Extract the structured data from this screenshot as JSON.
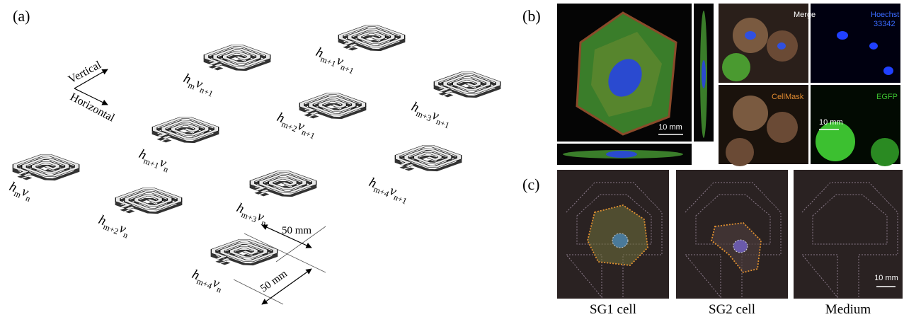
{
  "panel_a": {
    "label": "(a)",
    "axes": {
      "vertical": "Vertical",
      "horizontal": "Horizontal"
    },
    "resonators": [
      {
        "h": "h",
        "h_sub": "m",
        "v": "ν",
        "v_sub": "n"
      },
      {
        "h": "h",
        "h_sub": "m+2",
        "v": "ν",
        "v_sub": "n"
      },
      {
        "h": "h",
        "h_sub": "m+1",
        "v": "ν",
        "v_sub": "n"
      },
      {
        "h": "h",
        "h_sub": "m",
        "v": "ν",
        "v_sub": "n+1"
      },
      {
        "h": "h",
        "h_sub": "m+3",
        "v": "ν",
        "v_sub": "n"
      },
      {
        "h": "h",
        "h_sub": "m+4",
        "v": "ν",
        "v_sub": "n"
      },
      {
        "h": "h",
        "h_sub": "m+2",
        "v": "ν",
        "v_sub": "n+1"
      },
      {
        "h": "h",
        "h_sub": "m+1",
        "v": "ν",
        "v_sub": "n+1"
      },
      {
        "h": "h",
        "h_sub": "m+4",
        "v": "ν",
        "v_sub": "n+1"
      },
      {
        "h": "h",
        "h_sub": "m+3",
        "v": "ν",
        "v_sub": "n+1"
      }
    ],
    "dimensions": [
      "50 mm",
      "50 mm"
    ]
  },
  "panel_b": {
    "label": "(b)",
    "merge": "Merge",
    "hoechst": [
      "Hoechst",
      "33342"
    ],
    "cellmask": "CellMask",
    "egfp": "EGFP",
    "scale_bars": [
      "10 mm",
      "10 mm"
    ]
  },
  "panel_c": {
    "label": "(c)",
    "images": [
      "SG1 cell",
      "SG2 cell",
      "Medium"
    ],
    "scale_bar": "10 mm"
  }
}
